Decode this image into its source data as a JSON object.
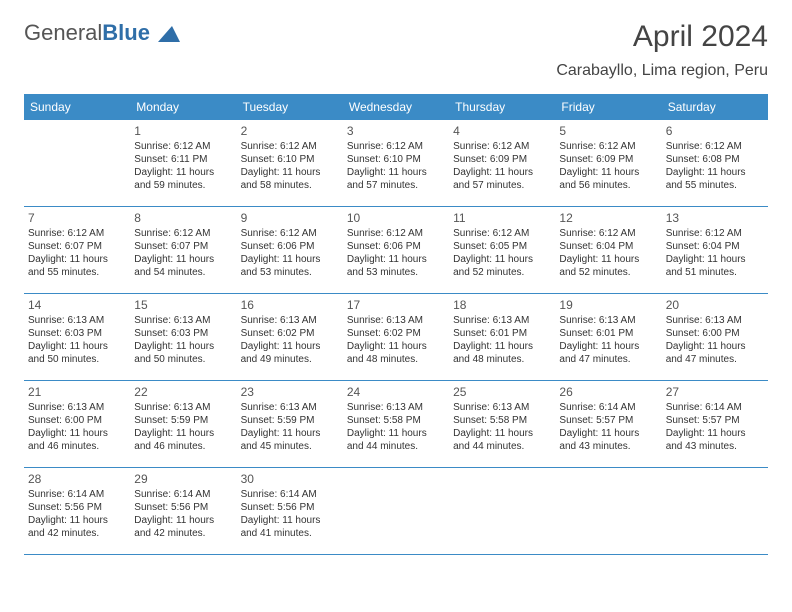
{
  "logo": {
    "part1": "General",
    "part2": "Blue"
  },
  "title": "April 2024",
  "subtitle": "Carabayllo, Lima region, Peru",
  "colors": {
    "header_bg": "#3b8bc6",
    "header_text": "#ffffff",
    "border": "#3b8bc6",
    "text": "#333333",
    "daynum": "#555555",
    "logo_gray": "#555555",
    "logo_blue": "#2f6ea8",
    "background": "#ffffff"
  },
  "fonts": {
    "title_size": 30,
    "subtitle_size": 16,
    "header_size": 12,
    "daynum_size": 12,
    "body_size": 10
  },
  "weekdays": [
    "Sunday",
    "Monday",
    "Tuesday",
    "Wednesday",
    "Thursday",
    "Friday",
    "Saturday"
  ],
  "weeks": [
    [
      {
        "n": "",
        "sr": "",
        "ss": "",
        "dl": ""
      },
      {
        "n": "1",
        "sr": "Sunrise: 6:12 AM",
        "ss": "Sunset: 6:11 PM",
        "dl": "Daylight: 11 hours and 59 minutes."
      },
      {
        "n": "2",
        "sr": "Sunrise: 6:12 AM",
        "ss": "Sunset: 6:10 PM",
        "dl": "Daylight: 11 hours and 58 minutes."
      },
      {
        "n": "3",
        "sr": "Sunrise: 6:12 AM",
        "ss": "Sunset: 6:10 PM",
        "dl": "Daylight: 11 hours and 57 minutes."
      },
      {
        "n": "4",
        "sr": "Sunrise: 6:12 AM",
        "ss": "Sunset: 6:09 PM",
        "dl": "Daylight: 11 hours and 57 minutes."
      },
      {
        "n": "5",
        "sr": "Sunrise: 6:12 AM",
        "ss": "Sunset: 6:09 PM",
        "dl": "Daylight: 11 hours and 56 minutes."
      },
      {
        "n": "6",
        "sr": "Sunrise: 6:12 AM",
        "ss": "Sunset: 6:08 PM",
        "dl": "Daylight: 11 hours and 55 minutes."
      }
    ],
    [
      {
        "n": "7",
        "sr": "Sunrise: 6:12 AM",
        "ss": "Sunset: 6:07 PM",
        "dl": "Daylight: 11 hours and 55 minutes."
      },
      {
        "n": "8",
        "sr": "Sunrise: 6:12 AM",
        "ss": "Sunset: 6:07 PM",
        "dl": "Daylight: 11 hours and 54 minutes."
      },
      {
        "n": "9",
        "sr": "Sunrise: 6:12 AM",
        "ss": "Sunset: 6:06 PM",
        "dl": "Daylight: 11 hours and 53 minutes."
      },
      {
        "n": "10",
        "sr": "Sunrise: 6:12 AM",
        "ss": "Sunset: 6:06 PM",
        "dl": "Daylight: 11 hours and 53 minutes."
      },
      {
        "n": "11",
        "sr": "Sunrise: 6:12 AM",
        "ss": "Sunset: 6:05 PM",
        "dl": "Daylight: 11 hours and 52 minutes."
      },
      {
        "n": "12",
        "sr": "Sunrise: 6:12 AM",
        "ss": "Sunset: 6:04 PM",
        "dl": "Daylight: 11 hours and 52 minutes."
      },
      {
        "n": "13",
        "sr": "Sunrise: 6:12 AM",
        "ss": "Sunset: 6:04 PM",
        "dl": "Daylight: 11 hours and 51 minutes."
      }
    ],
    [
      {
        "n": "14",
        "sr": "Sunrise: 6:13 AM",
        "ss": "Sunset: 6:03 PM",
        "dl": "Daylight: 11 hours and 50 minutes."
      },
      {
        "n": "15",
        "sr": "Sunrise: 6:13 AM",
        "ss": "Sunset: 6:03 PM",
        "dl": "Daylight: 11 hours and 50 minutes."
      },
      {
        "n": "16",
        "sr": "Sunrise: 6:13 AM",
        "ss": "Sunset: 6:02 PM",
        "dl": "Daylight: 11 hours and 49 minutes."
      },
      {
        "n": "17",
        "sr": "Sunrise: 6:13 AM",
        "ss": "Sunset: 6:02 PM",
        "dl": "Daylight: 11 hours and 48 minutes."
      },
      {
        "n": "18",
        "sr": "Sunrise: 6:13 AM",
        "ss": "Sunset: 6:01 PM",
        "dl": "Daylight: 11 hours and 48 minutes."
      },
      {
        "n": "19",
        "sr": "Sunrise: 6:13 AM",
        "ss": "Sunset: 6:01 PM",
        "dl": "Daylight: 11 hours and 47 minutes."
      },
      {
        "n": "20",
        "sr": "Sunrise: 6:13 AM",
        "ss": "Sunset: 6:00 PM",
        "dl": "Daylight: 11 hours and 47 minutes."
      }
    ],
    [
      {
        "n": "21",
        "sr": "Sunrise: 6:13 AM",
        "ss": "Sunset: 6:00 PM",
        "dl": "Daylight: 11 hours and 46 minutes."
      },
      {
        "n": "22",
        "sr": "Sunrise: 6:13 AM",
        "ss": "Sunset: 5:59 PM",
        "dl": "Daylight: 11 hours and 46 minutes."
      },
      {
        "n": "23",
        "sr": "Sunrise: 6:13 AM",
        "ss": "Sunset: 5:59 PM",
        "dl": "Daylight: 11 hours and 45 minutes."
      },
      {
        "n": "24",
        "sr": "Sunrise: 6:13 AM",
        "ss": "Sunset: 5:58 PM",
        "dl": "Daylight: 11 hours and 44 minutes."
      },
      {
        "n": "25",
        "sr": "Sunrise: 6:13 AM",
        "ss": "Sunset: 5:58 PM",
        "dl": "Daylight: 11 hours and 44 minutes."
      },
      {
        "n": "26",
        "sr": "Sunrise: 6:14 AM",
        "ss": "Sunset: 5:57 PM",
        "dl": "Daylight: 11 hours and 43 minutes."
      },
      {
        "n": "27",
        "sr": "Sunrise: 6:14 AM",
        "ss": "Sunset: 5:57 PM",
        "dl": "Daylight: 11 hours and 43 minutes."
      }
    ],
    [
      {
        "n": "28",
        "sr": "Sunrise: 6:14 AM",
        "ss": "Sunset: 5:56 PM",
        "dl": "Daylight: 11 hours and 42 minutes."
      },
      {
        "n": "29",
        "sr": "Sunrise: 6:14 AM",
        "ss": "Sunset: 5:56 PM",
        "dl": "Daylight: 11 hours and 42 minutes."
      },
      {
        "n": "30",
        "sr": "Sunrise: 6:14 AM",
        "ss": "Sunset: 5:56 PM",
        "dl": "Daylight: 11 hours and 41 minutes."
      },
      {
        "n": "",
        "sr": "",
        "ss": "",
        "dl": ""
      },
      {
        "n": "",
        "sr": "",
        "ss": "",
        "dl": ""
      },
      {
        "n": "",
        "sr": "",
        "ss": "",
        "dl": ""
      },
      {
        "n": "",
        "sr": "",
        "ss": "",
        "dl": ""
      }
    ]
  ]
}
